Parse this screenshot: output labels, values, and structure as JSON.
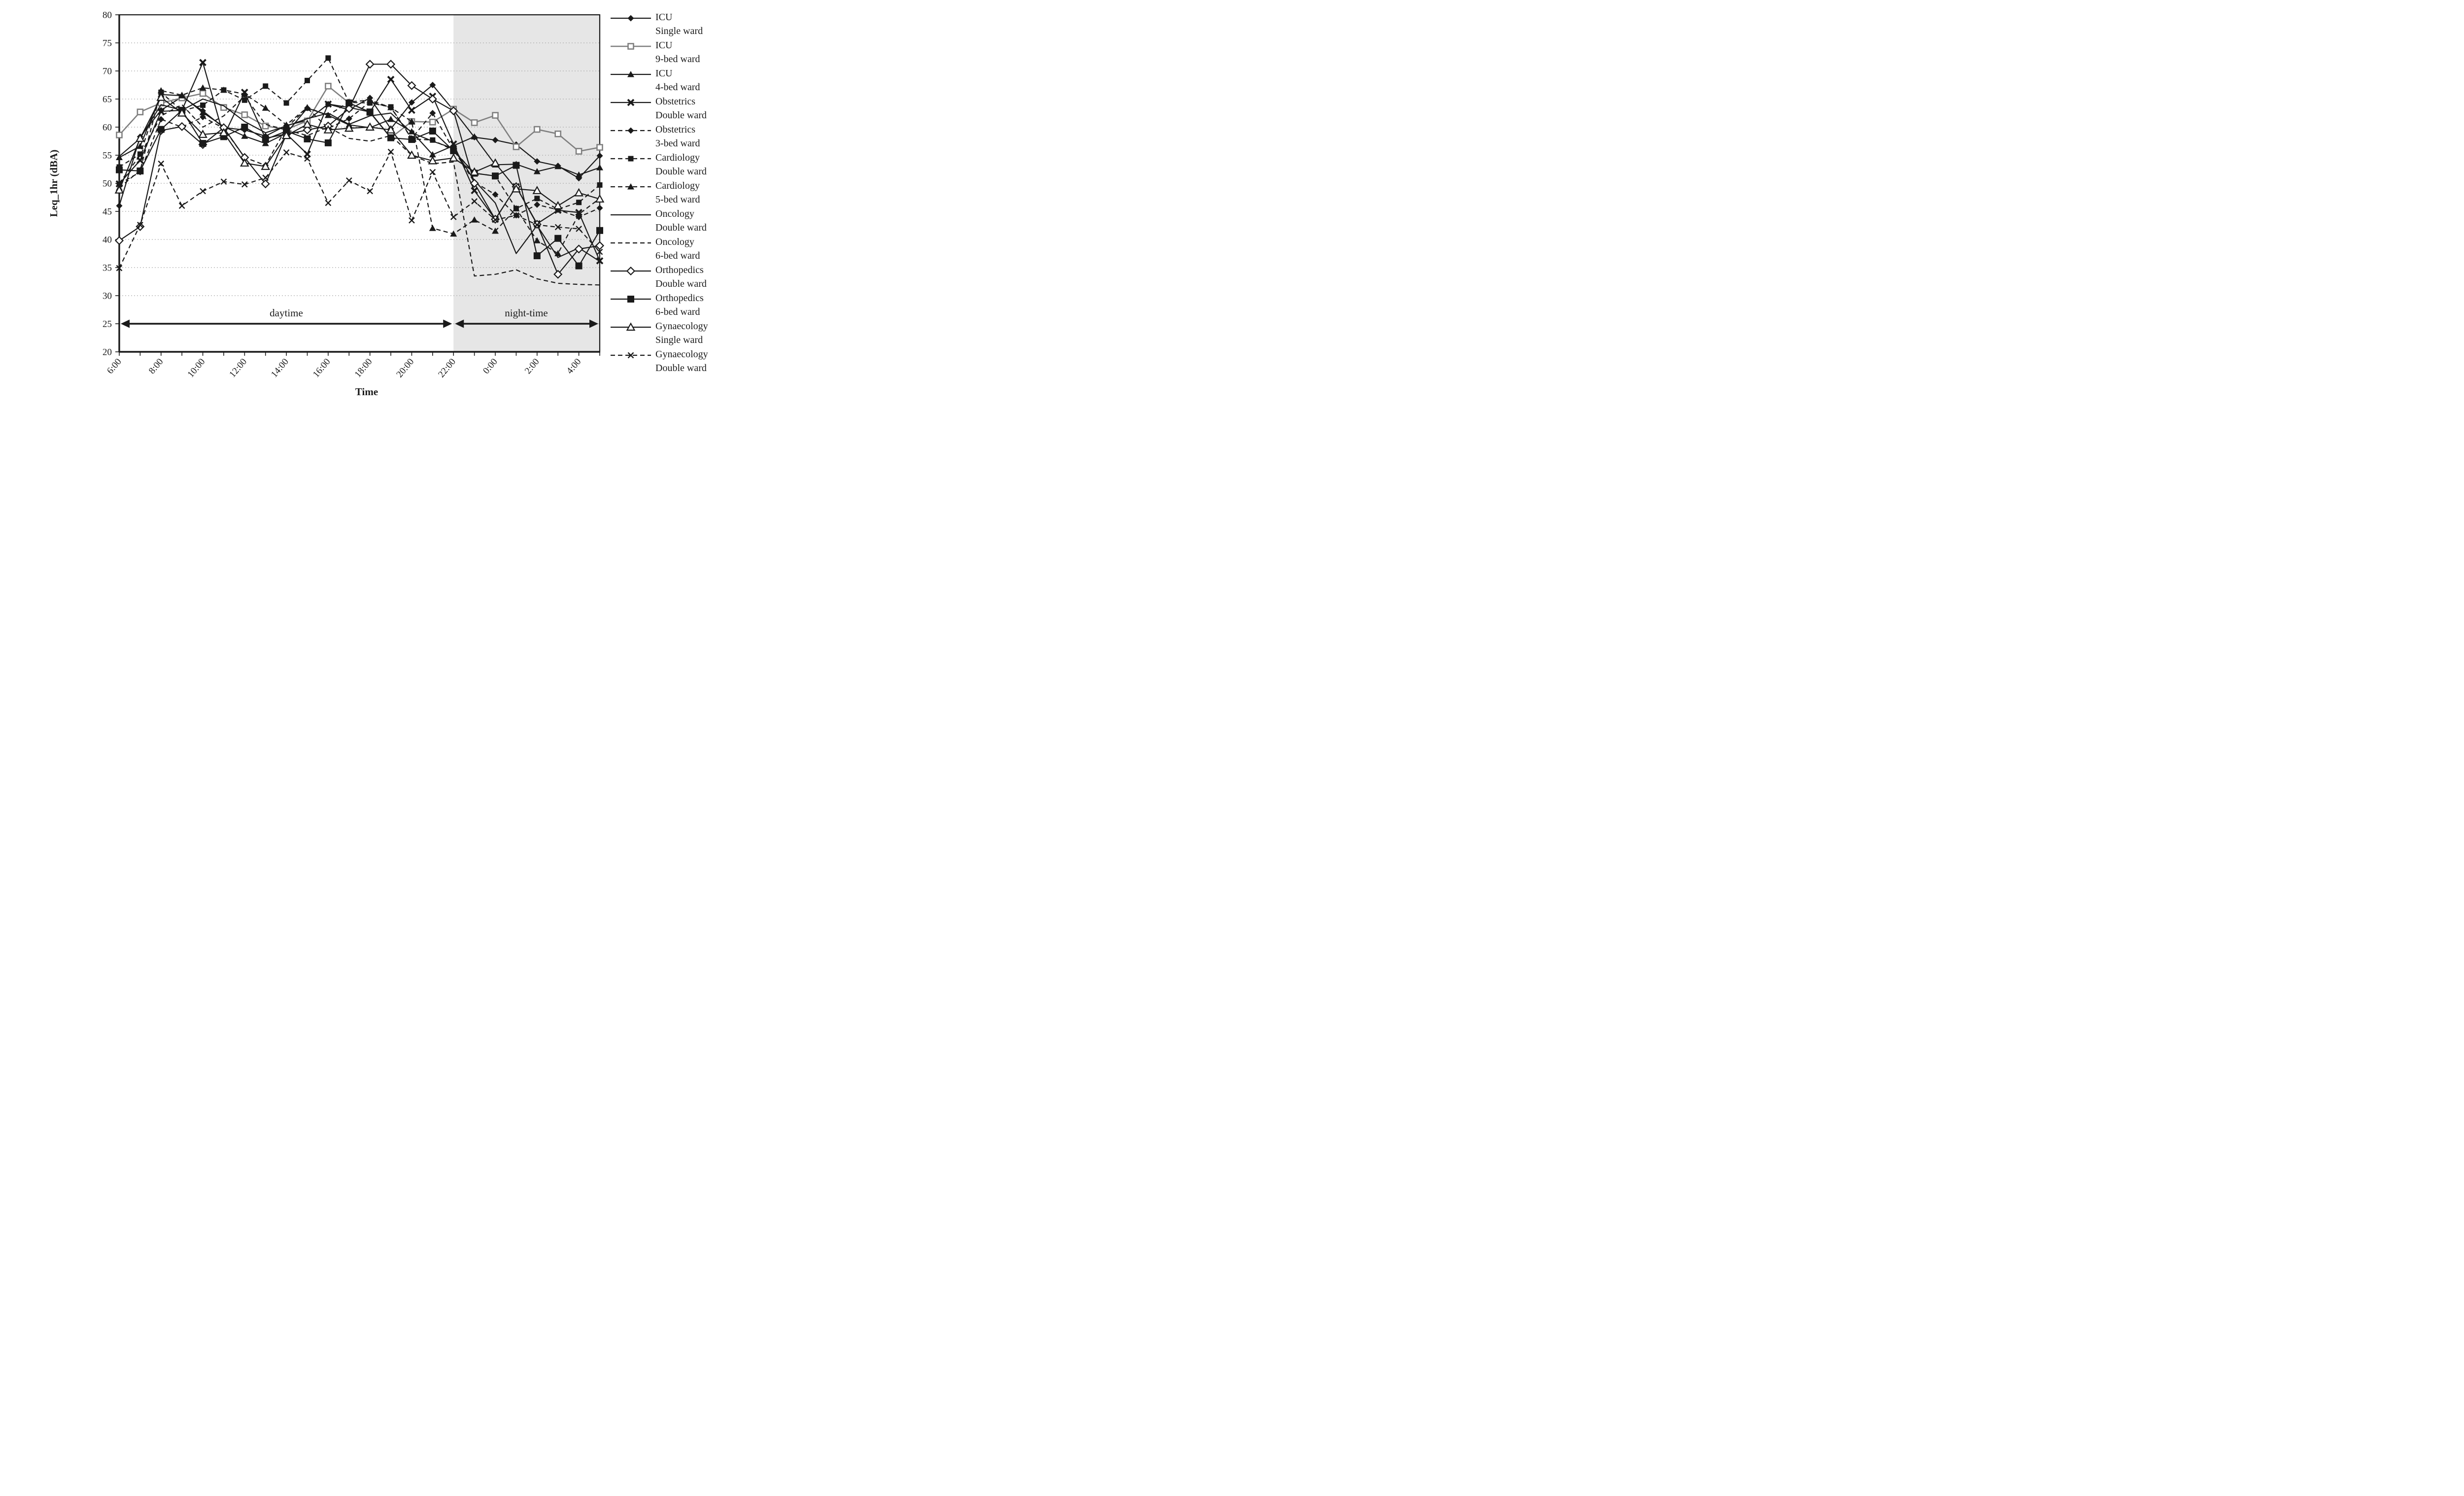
{
  "figure": {
    "background": "#ffffff",
    "plot_border_color": "#1a1a1a",
    "night_shade_color": "#e6e6e6",
    "gridline_color": "#ababab"
  },
  "chart_data": {
    "type": "line",
    "title": "",
    "xlabel": "Time",
    "ylabel": "Leq_1hr  (dBA)",
    "ylim": [
      20,
      80
    ],
    "yticks": [
      20,
      25,
      30,
      35,
      40,
      45,
      50,
      55,
      60,
      65,
      70,
      75,
      80
    ],
    "grid": "horizontal-dotted",
    "legend_position": "right",
    "x": [
      "6:00",
      "7:00",
      "8:00",
      "9:00",
      "10:00",
      "11:00",
      "12:00",
      "13:00",
      "14:00",
      "15:00",
      "16:00",
      "17:00",
      "18:00",
      "19:00",
      "20:00",
      "21:00",
      "22:00",
      "23:00",
      "0:00",
      "1:00",
      "2:00",
      "3:00",
      "4:00",
      "5:00"
    ],
    "x_shown_tick_labels": [
      "6:00",
      "8:00",
      "10:00",
      "12:00",
      "14:00",
      "16:00",
      "18:00",
      "20:00",
      "22:00",
      "0:00",
      "2:00",
      "4:00"
    ],
    "night_region": {
      "start_x": "22:00",
      "end_x": "5:00"
    },
    "annotations": {
      "daytime": "daytime",
      "nighttime": "night-time",
      "arrow_y_dba": 25
    },
    "series": [
      {
        "name_line1": "ICU",
        "name_line2": "Single ward",
        "line": "solid",
        "marker": "diamond_filled",
        "color": "#1a1a1a",
        "values": [
          46.0,
          58.3,
          63.0,
          65.4,
          62.9,
          59.9,
          59.5,
          58.4,
          60.3,
          61.2,
          64.1,
          63.1,
          65.2,
          59.7,
          64.4,
          67.5,
          63.0,
          58.2,
          57.7,
          56.9,
          53.9,
          53.1,
          50.9,
          54.9
        ]
      },
      {
        "name_line1": "ICU",
        "name_line2": "9-bed ward",
        "line": "solid",
        "marker": "square_open",
        "color": "#7f7f7f",
        "values": [
          58.6,
          62.7,
          64.3,
          65.2,
          66.0,
          63.5,
          62.2,
          60.2,
          59.6,
          61.1,
          67.3,
          64.3,
          62.6,
          58.1,
          61.0,
          60.9,
          63.2,
          60.8,
          62.1,
          56.5,
          59.6,
          58.8,
          55.7,
          56.4
        ]
      },
      {
        "name_line1": "ICU",
        "name_line2": "4-bed ward",
        "line": "solid",
        "marker": "triangle_filled",
        "color": "#1a1a1a",
        "values": [
          54.6,
          56.6,
          65.8,
          65.6,
          62.6,
          60.1,
          58.4,
          57.1,
          58.9,
          63.4,
          62.1,
          60.4,
          59.9,
          61.4,
          59.2,
          55.1,
          56.7,
          58.3,
          53.3,
          53.4,
          52.1,
          53.0,
          51.5,
          52.8
        ]
      },
      {
        "name_line1": "Obstetrics",
        "name_line2": "Double ward",
        "line": "solid",
        "marker": "x_bold",
        "color": "#1a1a1a",
        "values": [
          49.9,
          54.1,
          62.8,
          63.0,
          71.5,
          58.4,
          66.2,
          58.0,
          58.8,
          55.2,
          64.1,
          63.5,
          62.7,
          68.5,
          63.0,
          65.5,
          57.0,
          48.7,
          43.6,
          49.4,
          42.8,
          45.2,
          44.8,
          36.2
        ]
      },
      {
        "name_line1": "Obstetrics",
        "name_line2": "3-bed ward",
        "line": "dashed",
        "marker": "diamond_filled",
        "color": "#1a1a1a",
        "values": [
          49.9,
          52.0,
          61.4,
          60.0,
          61.8,
          59.8,
          54.6,
          53.2,
          59.9,
          63.4,
          59.8,
          61.5,
          64.5,
          63.5,
          58.0,
          62.5,
          56.0,
          50.2,
          48.0,
          44.3,
          46.2,
          45.3,
          44.0,
          45.6
        ]
      },
      {
        "name_line1": "Cardiology",
        "name_line2": "Double ward",
        "line": "dashed",
        "marker": "square_filled",
        "color": "#1a1a1a",
        "values": [
          52.9,
          55.2,
          66.2,
          62.9,
          63.9,
          66.6,
          64.8,
          67.3,
          64.3,
          68.3,
          72.3,
          64.4,
          64.3,
          63.6,
          57.9,
          57.7,
          55.9,
          51.8,
          51.3,
          45.5,
          47.3,
          45.4,
          46.6,
          49.7
        ]
      },
      {
        "name_line1": "Cardiology",
        "name_line2": "5-bed ward",
        "line": "dashed",
        "marker": "triangle_filled",
        "color": "#1a1a1a",
        "values": [
          49.2,
          52.3,
          66.5,
          65.7,
          67.0,
          66.6,
          65.9,
          63.4,
          60.4,
          63.5,
          62.1,
          64.5,
          64.8,
          63.5,
          61.0,
          42.0,
          41.0,
          43.5,
          41.5,
          45.5,
          39.8,
          37.5,
          44.5,
          47.3
        ]
      },
      {
        "name_line1": "Oncology",
        "name_line2": "Double ward",
        "line": "solid",
        "marker": "none",
        "color": "#1a1a1a",
        "values": [
          54.8,
          58.0,
          64.0,
          63.0,
          65.0,
          63.8,
          61.0,
          59.0,
          60.2,
          61.5,
          62.5,
          60.5,
          62.0,
          62.5,
          59.0,
          57.5,
          56.2,
          50.5,
          46.5,
          37.5,
          42.5,
          36.8,
          38.5,
          36.1
        ]
      },
      {
        "name_line1": "Oncology",
        "name_line2": "6-bed ward",
        "line": "dashed",
        "marker": "none",
        "color": "#1a1a1a",
        "values": [
          50.0,
          55.0,
          62.0,
          64.0,
          60.0,
          62.0,
          65.5,
          60.5,
          59.5,
          58.5,
          60.0,
          58.0,
          57.5,
          58.5,
          55.0,
          53.5,
          53.8,
          33.5,
          33.8,
          34.6,
          33.0,
          32.2,
          32.0,
          31.9
        ]
      },
      {
        "name_line1": "Orthopedics",
        "name_line2": "Double ward",
        "line": "solid",
        "marker": "diamond_open",
        "color": "#1a1a1a",
        "values": [
          39.8,
          42.3,
          59.4,
          60.1,
          56.9,
          59.9,
          54.6,
          49.9,
          58.7,
          59.5,
          60.2,
          63.3,
          71.2,
          71.2,
          67.4,
          65.0,
          62.9,
          50.0,
          43.6,
          49.4,
          42.7,
          33.8,
          38.3,
          38.9
        ]
      },
      {
        "name_line1": "Orthopedics",
        "name_line2": "6-bed ward",
        "line": "solid",
        "marker": "square_filled_big",
        "color": "#1a1a1a",
        "values": [
          52.4,
          52.2,
          59.6,
          63.0,
          57.1,
          58.3,
          60.0,
          57.8,
          59.3,
          57.9,
          57.2,
          64.3,
          62.7,
          58.1,
          57.8,
          59.3,
          55.8,
          51.8,
          51.3,
          53.2,
          37.1,
          40.2,
          35.3,
          41.6
        ]
      },
      {
        "name_line1": "Gynaecology",
        "name_line2": "Single ward",
        "line": "solid",
        "marker": "triangle_open",
        "color": "#1a1a1a",
        "values": [
          48.8,
          58.0,
          65.3,
          62.5,
          58.7,
          59.0,
          53.6,
          53.0,
          58.5,
          60.5,
          59.5,
          59.8,
          60.0,
          59.5,
          55.0,
          54.0,
          54.5,
          52.0,
          53.6,
          49.0,
          48.7,
          46.0,
          48.3,
          47.2
        ]
      },
      {
        "name_line1": "Gynaecology",
        "name_line2": "Double ward",
        "line": "dashed",
        "marker": "x_thin",
        "color": "#1a1a1a",
        "values": [
          34.9,
          42.6,
          53.5,
          46.0,
          48.6,
          50.3,
          49.8,
          51.0,
          55.5,
          54.4,
          46.5,
          50.5,
          48.6,
          55.6,
          43.4,
          52.0,
          44.0,
          46.8,
          43.5,
          44.3,
          42.6,
          42.2,
          41.9,
          37.8
        ]
      }
    ]
  }
}
